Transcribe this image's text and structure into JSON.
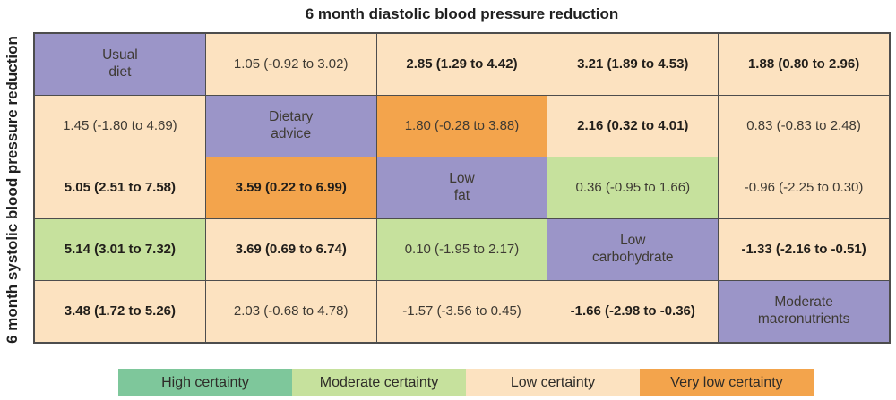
{
  "title": "6 month diastolic blood pressure reduction",
  "y_axis_label": "6 month systolic blood pressure reduction",
  "certainty_colors": {
    "high": "#7ec79b",
    "moderate": "#c6e19d",
    "low": "#fce2c0",
    "very_low": "#f3a44c",
    "diet": "#9b95c8"
  },
  "legend": [
    {
      "key": "high",
      "label": "High certainty"
    },
    {
      "key": "moderate",
      "label": "Moderate certainty"
    },
    {
      "key": "low",
      "label": "Low certainty"
    },
    {
      "key": "very_low",
      "label": "Very low certainty"
    }
  ],
  "chart_data": {
    "type": "heatmap",
    "title": "6 month diastolic blood pressure reduction",
    "ylabel": "6 month systolic blood pressure reduction",
    "treatments": [
      "Usual diet",
      "Dietary advice",
      "Low fat",
      "Low carbohydrate",
      "Moderate macronutrients"
    ],
    "note_layout": "League table: diagonal cells name the diets; upper-right triangle shows diastolic reductions, lower-left triangle shows systolic reductions; cell shading encodes certainty",
    "matrix": [
      [
        {
          "text": "Usual\ndiet",
          "certainty": "diet",
          "bold": false
        },
        {
          "text": "1.05 (-0.92 to 3.02)",
          "certainty": "low",
          "bold": false
        },
        {
          "text": "2.85 (1.29 to 4.42)",
          "certainty": "low",
          "bold": true
        },
        {
          "text": "3.21 (1.89 to 4.53)",
          "certainty": "low",
          "bold": true
        },
        {
          "text": "1.88 (0.80 to 2.96)",
          "certainty": "low",
          "bold": true
        }
      ],
      [
        {
          "text": "1.45 (-1.80 to 4.69)",
          "certainty": "low",
          "bold": false
        },
        {
          "text": "Dietary\nadvice",
          "certainty": "diet",
          "bold": false
        },
        {
          "text": "1.80 (-0.28 to 3.88)",
          "certainty": "very_low",
          "bold": false
        },
        {
          "text": "2.16 (0.32 to 4.01)",
          "certainty": "low",
          "bold": true
        },
        {
          "text": "0.83 (-0.83 to 2.48)",
          "certainty": "low",
          "bold": false
        }
      ],
      [
        {
          "text": "5.05 (2.51 to 7.58)",
          "certainty": "low",
          "bold": true
        },
        {
          "text": "3.59 (0.22 to 6.99)",
          "certainty": "very_low",
          "bold": true
        },
        {
          "text": "Low\nfat",
          "certainty": "diet",
          "bold": false
        },
        {
          "text": "0.36 (-0.95 to 1.66)",
          "certainty": "moderate",
          "bold": false
        },
        {
          "text": "-0.96 (-2.25 to 0.30)",
          "certainty": "low",
          "bold": false
        }
      ],
      [
        {
          "text": "5.14 (3.01 to 7.32)",
          "certainty": "moderate",
          "bold": true
        },
        {
          "text": "3.69 (0.69 to 6.74)",
          "certainty": "low",
          "bold": true
        },
        {
          "text": "0.10 (-1.95 to 2.17)",
          "certainty": "moderate",
          "bold": false
        },
        {
          "text": "Low\ncarbohydrate",
          "certainty": "diet",
          "bold": false
        },
        {
          "text": "-1.33 (-2.16 to -0.51)",
          "certainty": "low",
          "bold": true
        }
      ],
      [
        {
          "text": "3.48 (1.72 to 5.26)",
          "certainty": "low",
          "bold": true
        },
        {
          "text": "2.03 (-0.68 to 4.78)",
          "certainty": "low",
          "bold": false
        },
        {
          "text": "-1.57 (-3.56 to 0.45)",
          "certainty": "low",
          "bold": false
        },
        {
          "text": "-1.66 (-2.98 to -0.36)",
          "certainty": "low",
          "bold": true
        },
        {
          "text": "Moderate\nmacronutrients",
          "certainty": "diet",
          "bold": false
        }
      ]
    ],
    "legend_position": "bottom"
  }
}
